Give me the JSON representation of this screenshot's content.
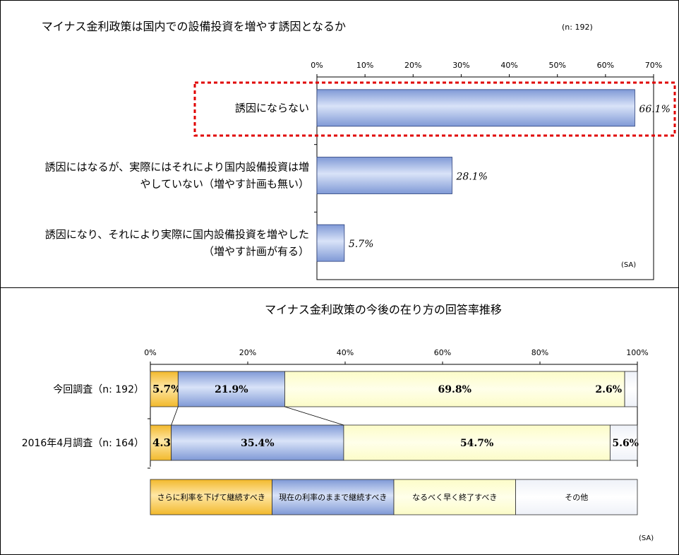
{
  "chart_data": [
    {
      "type": "bar",
      "orientation": "horizontal",
      "title": "マイナス金利政策は国内での設備投資を増やす誘因となるか",
      "sample_note": "(n: 192)",
      "note": "(SA)",
      "xlim": [
        0,
        70
      ],
      "x_ticks": [
        "0%",
        "10%",
        "20%",
        "30%",
        "40%",
        "50%",
        "60%",
        "70%"
      ],
      "categories": [
        [
          "誘因にならない"
        ],
        [
          "誘因にはなるが、実際にはそれにより国内設備投資は増",
          "やしていない（増やす計画も無い）"
        ],
        [
          "誘因になり、それにより実際に国内設備投資を増やした",
          "（増やす計画が有る）"
        ]
      ],
      "values": [
        66.1,
        28.1,
        5.7
      ],
      "value_labels": [
        "66.1%",
        "28.1%",
        "5.7%"
      ],
      "highlight": "誘因にならない",
      "grid": false
    },
    {
      "type": "bar",
      "orientation": "horizontal",
      "stacked": true,
      "percent": true,
      "title": "マイナス金利政策の今後の在り方の回答率推移",
      "note": "(SA)",
      "xlim": [
        0,
        100
      ],
      "x_ticks": [
        "0%",
        "20%",
        "40%",
        "60%",
        "80%",
        "100%"
      ],
      "categories": [
        "今回調査（n: 192）",
        "2016年4月調査（n: 164）"
      ],
      "series": [
        {
          "name": "さらに利率を下げて継続すべき",
          "values": [
            5.7,
            4.3
          ],
          "labels": [
            "5.7%",
            "4.3%"
          ],
          "color": "#f7c94a"
        },
        {
          "name": "現在の利率のままで継続すべき",
          "values": [
            21.9,
            35.4
          ],
          "labels": [
            "21.9%",
            "35.4%"
          ],
          "color": "#8fa9dd"
        },
        {
          "name": "なるべく早く終了すべき",
          "values": [
            69.8,
            54.7
          ],
          "labels": [
            "69.8%",
            "54.7%"
          ],
          "color": "#ffffd0"
        },
        {
          "name": "その他",
          "values": [
            2.6,
            5.6
          ],
          "labels": [
            "2.6%",
            "5.6%"
          ],
          "color": "#f4f6fc"
        }
      ],
      "legend_position": "bottom",
      "grid": false
    }
  ]
}
